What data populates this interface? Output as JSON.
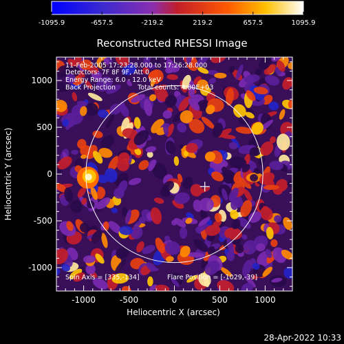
{
  "title": "Reconstructed RHESSI Image",
  "colorbar": {
    "tick_labels": [
      "-1095.9",
      "-657.5",
      "-219.2",
      "219.2",
      "657.5",
      "1095.9"
    ],
    "colors": [
      "#0000ff",
      "#5a1e9a",
      "#b03cc0",
      "#e01414",
      "#ff9a00",
      "#ffffff"
    ]
  },
  "annotations": {
    "line1": "11-Feb-2005 17:23:28.000 to 17:26:28.000",
    "line2": "Detectors: 7F 8F 9F, Att 0",
    "line3": "Energy Range: 6.0 - 12.0 keV",
    "line4_left": "Back Projection",
    "line4_right": "Total counts: 4.80E+03",
    "bottom_left": "Spin Axis = [335,-134]",
    "bottom_right": "Flare Position = [-1029,-39]"
  },
  "x_axis": {
    "label": "Heliocentric X (arcsec)",
    "ticks": [
      -1000,
      -500,
      0,
      500,
      1000
    ],
    "range": [
      -1300,
      1300
    ]
  },
  "y_axis": {
    "label": "Heliocentric Y (arcsec)",
    "ticks": [
      -1000,
      -500,
      0,
      500,
      1000
    ],
    "range": [
      -1250,
      1250
    ]
  },
  "solar_limb_radius_arcsec": 975,
  "crosshair_position_arcsec": [
    335,
    -134
  ],
  "timestamp": "28-Apr-2022 10:33"
}
